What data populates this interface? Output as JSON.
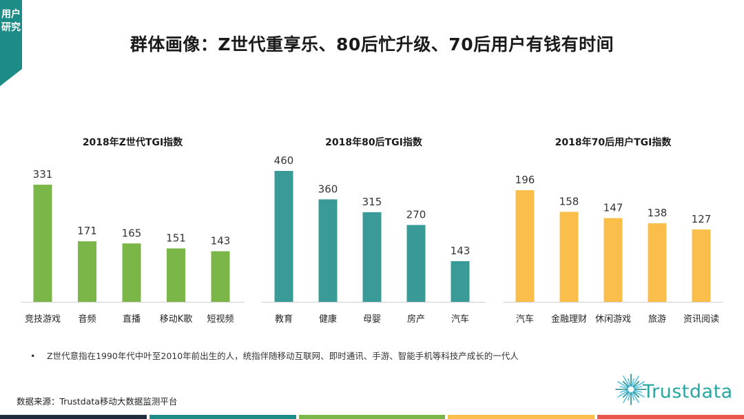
{
  "side_tag": {
    "label": "用户研究"
  },
  "title": "群体画像：Z世代重享乐、80后忙升级、70后用户有钱有时间",
  "chart_data": [
    {
      "type": "bar",
      "title": "2018年Z世代TGI指数",
      "categories": [
        "竞技游戏",
        "音频",
        "直播",
        "移动K歌",
        "短视频"
      ],
      "values": [
        331,
        171,
        165,
        151,
        143
      ],
      "color": "#7ab648",
      "xlabel": "",
      "ylabel": "",
      "ylim": [
        0,
        331
      ]
    },
    {
      "type": "bar",
      "title": "2018年80后TGI指数",
      "categories": [
        "教育",
        "健康",
        "母婴",
        "房产",
        "汽车"
      ],
      "values": [
        460,
        360,
        315,
        270,
        143
      ],
      "color": "#3a9a98",
      "xlabel": "",
      "ylabel": "",
      "ylim": [
        0,
        460
      ]
    },
    {
      "type": "bar",
      "title": "2018年70后用户TGI指数",
      "categories": [
        "汽车",
        "金融理财",
        "休闲游戏",
        "旅游",
        "资讯阅读"
      ],
      "values": [
        196,
        158,
        147,
        138,
        127
      ],
      "color": "#f9bf4a",
      "xlabel": "",
      "ylabel": "",
      "ylim": [
        0,
        196
      ]
    }
  ],
  "footnote": {
    "bullet": "•",
    "text": "Z世代意指在1990年代中叶至2010年前出生的人，统指伴随移动互联网、即时通讯、手游、智能手机等科技产成长的一代人"
  },
  "source": "数据来源：Trustdata移动大数据监测平台",
  "logo": {
    "text": "Trustdata",
    "color": "#2aa6a0"
  },
  "bottom_bar_colors": [
    "#1f2d3d",
    "#1e8c86",
    "#7ab648",
    "#f9bf4a",
    "#e8564a"
  ]
}
